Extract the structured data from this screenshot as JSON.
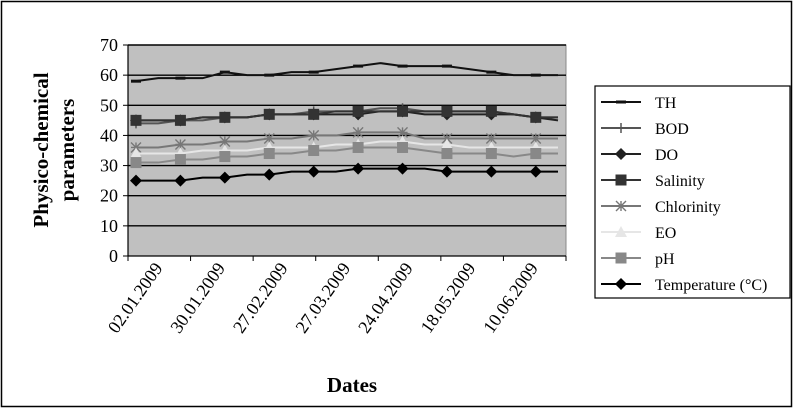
{
  "chart_data": {
    "type": "line",
    "title": "",
    "xlabel": "Dates",
    "ylabel": "Physico-chemical parameters",
    "ylim": [
      0,
      70
    ],
    "yticks": [
      "0",
      "10",
      "20",
      "30",
      "40",
      "50",
      "60",
      "70"
    ],
    "x_tick_labels": [
      "02.01.2009",
      "30.01.2009",
      "27.02.2009",
      "27.03.2009",
      "24.04.2009",
      "18.05.2009",
      "10.06.2009"
    ],
    "grid": "horizontal",
    "legend_position": "right",
    "plot_background": "#c0c0c0",
    "series": [
      {
        "name": "TH",
        "color": "#111111",
        "marker": "dash",
        "values": [
          58,
          59,
          59,
          59,
          61,
          60,
          60,
          61,
          61,
          62,
          63,
          64,
          63,
          63,
          63,
          62,
          61,
          60,
          60,
          60
        ]
      },
      {
        "name": "BOD",
        "color": "#555555",
        "marker": "plus",
        "values": [
          44,
          44,
          45,
          45,
          46,
          46,
          47,
          47,
          48,
          48,
          48,
          49,
          49,
          48,
          48,
          48,
          48,
          47,
          46,
          46
        ]
      },
      {
        "name": "DO",
        "color": "#222222",
        "marker": "diamond",
        "values": [
          45,
          45,
          45,
          46,
          46,
          46,
          47,
          47,
          47,
          47,
          47,
          48,
          48,
          47,
          47,
          47,
          47,
          47,
          46,
          45
        ]
      },
      {
        "name": "Salinity",
        "color": "#333333",
        "marker": "square",
        "values": [
          45,
          45,
          45,
          46,
          46,
          46,
          47,
          47,
          47,
          48,
          48,
          48,
          48,
          48,
          48,
          48,
          48,
          47,
          46,
          46
        ]
      },
      {
        "name": "Chlorinity",
        "color": "#777777",
        "marker": "star",
        "values": [
          36,
          36,
          37,
          37,
          38,
          38,
          39,
          39,
          40,
          40,
          41,
          41,
          41,
          39,
          39,
          39,
          39,
          39,
          39,
          39
        ]
      },
      {
        "name": "EO",
        "color": "#e6e6e6",
        "marker": "triangle",
        "values": [
          34,
          34,
          34,
          35,
          35,
          35,
          36,
          36,
          36,
          37,
          37,
          38,
          38,
          37,
          37,
          36,
          36,
          36,
          36,
          36
        ]
      },
      {
        "name": "pH",
        "color": "#888888",
        "marker": "square",
        "values": [
          31,
          31,
          32,
          32,
          33,
          33,
          34,
          34,
          35,
          35,
          36,
          36,
          36,
          35,
          34,
          34,
          34,
          33,
          34,
          34
        ]
      },
      {
        "name": "Temperature (°C)",
        "color": "#000000",
        "marker": "diamond",
        "values": [
          25,
          25,
          25,
          26,
          26,
          27,
          27,
          28,
          28,
          28,
          29,
          29,
          29,
          29,
          28,
          28,
          28,
          28,
          28,
          28
        ]
      }
    ]
  }
}
